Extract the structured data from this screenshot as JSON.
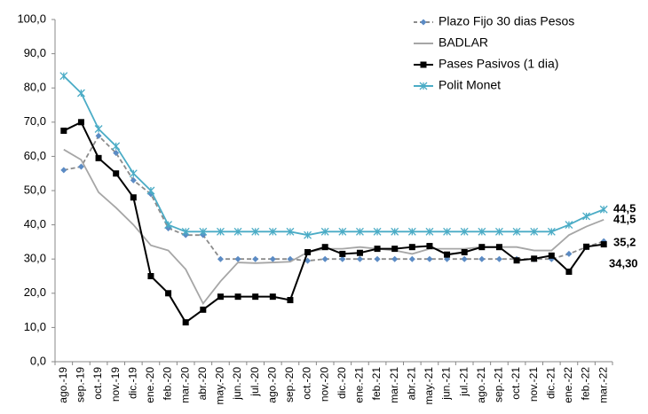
{
  "chart_data": {
    "type": "line",
    "categories": [
      "ago.-19",
      "sep.-19",
      "oct.-19",
      "nov.-19",
      "dic.-19",
      "ene.-20",
      "feb.-20",
      "mar.-20",
      "abr.-20",
      "may.-20",
      "jun.-20",
      "jul.-20",
      "ago.-20",
      "sep.-20",
      "oct.-20",
      "nov.-20",
      "dic.-20",
      "ene.-21",
      "feb.-21",
      "mar.-21",
      "abr.-21",
      "may.-21",
      "jun.-21",
      "jul.-21",
      "ago.-21",
      "sep.-21",
      "oct.-21",
      "nov.-21",
      "dic.-21",
      "ene.-22",
      "feb.-22",
      "mar.-22"
    ],
    "series": [
      {
        "name": "Plazo Fijo 30 dias Pesos",
        "color": "#5b8bc4",
        "line_color": "#8c8c8c",
        "dash": true,
        "marker": "diamond",
        "values": [
          56,
          57,
          66,
          61,
          53,
          49,
          39,
          37,
          37,
          30,
          30,
          30,
          30,
          30,
          29.5,
          30,
          30,
          30,
          30,
          30,
          30,
          30,
          30,
          30,
          30,
          30,
          30,
          30,
          30,
          31.5,
          33.5,
          35.2
        ]
      },
      {
        "name": "BADLAR",
        "color": "#a6a6a6",
        "line_color": "#a6a6a6",
        "dash": false,
        "marker": "none",
        "values": [
          62,
          59,
          49.5,
          45,
          40,
          34,
          32.5,
          27,
          17,
          23.5,
          29,
          28.8,
          29,
          29.2,
          32,
          33,
          33,
          33.5,
          33,
          32.5,
          31.5,
          33,
          33,
          33,
          33.5,
          33.5,
          33.5,
          32.5,
          32.5,
          37,
          39.5,
          41.5
        ]
      },
      {
        "name": "Pases Pasivos (1 dia)",
        "color": "#000000",
        "line_color": "#000000",
        "dash": false,
        "marker": "square",
        "values": [
          67.5,
          70,
          59.5,
          55,
          48,
          25,
          20,
          11.5,
          15.2,
          19,
          19,
          19,
          19,
          18,
          32,
          33.5,
          31.5,
          31.8,
          33,
          33,
          33.5,
          33.8,
          31.3,
          32,
          33.5,
          33.5,
          29.6,
          30.1,
          31,
          26.3,
          33.6,
          34.3
        ]
      },
      {
        "name": "Polit Monet",
        "color": "#4bacc6",
        "line_color": "#4bacc6",
        "dash": false,
        "marker": "star",
        "values": [
          83.5,
          78.5,
          68,
          63,
          55,
          50,
          40,
          38,
          38,
          38,
          38,
          38,
          38,
          38,
          37,
          38,
          38,
          38,
          38,
          38,
          38,
          38,
          38,
          38,
          38,
          38,
          38,
          38,
          38,
          40,
          42.5,
          44.5
        ]
      }
    ],
    "annotations": [
      "44,5",
      "41,5",
      "35,2",
      "34,30"
    ],
    "ylim": [
      0,
      100
    ],
    "yticks": [
      {
        "value": 0,
        "label": "0,0"
      },
      {
        "value": 10,
        "label": "10,0"
      },
      {
        "value": 20,
        "label": "20,0"
      },
      {
        "value": 30,
        "label": "30,0"
      },
      {
        "value": 40,
        "label": "40,0"
      },
      {
        "value": 50,
        "label": "50,0"
      },
      {
        "value": 60,
        "label": "60,0"
      },
      {
        "value": 70,
        "label": "70,0"
      },
      {
        "value": 80,
        "label": "80,0"
      },
      {
        "value": 90,
        "label": "90,0"
      },
      {
        "value": 100,
        "label": "100,0"
      }
    ],
    "grid": false,
    "legend": "upper right"
  }
}
